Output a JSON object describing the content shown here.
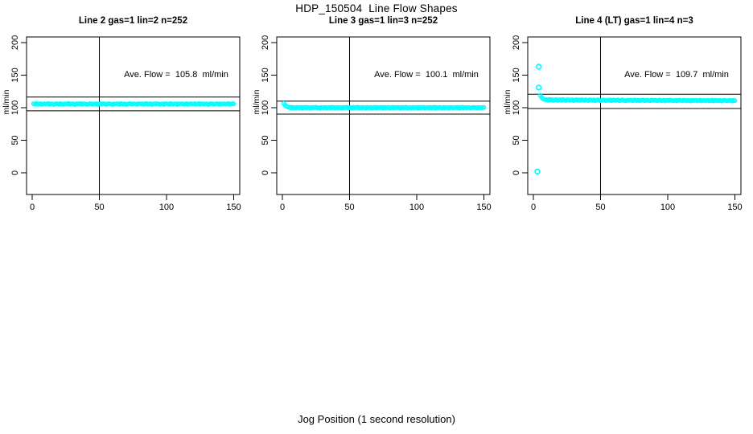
{
  "chart_data": {
    "type": "scatter",
    "title": "HDP_150504  Line Flow Shapes",
    "xlabel": "Jog Position (1 second resolution)",
    "ylabel": "ml/min",
    "xlim": [
      0,
      150
    ],
    "ylim": [
      0,
      200
    ],
    "x_ticks": [
      0,
      50,
      100,
      150
    ],
    "y_ticks": [
      0,
      50,
      100,
      150,
      200
    ],
    "vline_x": 50,
    "grid": false,
    "point_color": "#00FFFF",
    "line_color": "#000000",
    "plots": [
      {
        "title": "Line 2 gas=1 lin=2 n=252",
        "annotation": "Ave. Flow =  105.8  ml/min",
        "ave_flow": 105.8,
        "n": 252,
        "upper_line": 116.4,
        "lower_line": 95.2,
        "series": {
          "x_start": 1,
          "x_step": 1,
          "y": [
            106.1,
            105.3,
            106.5,
            105.0,
            105.8,
            106.3,
            104.9,
            105.6,
            106.2,
            105.4,
            105.9,
            106.4,
            105.1,
            105.7,
            106.0,
            104.8,
            105.5,
            106.2,
            105.8,
            105.2,
            106.3,
            105.6,
            104.9,
            106.1,
            105.4,
            105.9,
            106.5,
            105.2,
            105.7,
            106.0,
            105.3,
            104.8,
            106.2,
            105.8,
            105.5,
            106.4,
            105.0,
            105.9,
            106.1,
            105.6,
            104.9,
            105.4,
            106.3,
            105.8,
            105.1,
            106.0,
            105.5,
            106.2,
            104.8,
            105.7,
            106.4,
            105.3,
            105.9,
            106.1,
            105.0,
            105.6,
            106.3,
            105.8,
            105.2,
            104.9,
            106.0,
            105.5,
            106.2,
            105.7,
            105.1,
            106.4,
            105.8,
            105.3,
            106.1,
            104.8,
            105.6,
            105.9,
            106.3,
            105.2,
            105.7,
            106.0,
            105.4,
            104.9,
            106.2,
            105.8,
            105.5,
            106.1,
            105.0,
            105.9,
            106.4,
            105.3,
            105.6,
            106.2,
            104.8,
            105.7,
            106.0,
            105.4,
            106.3,
            105.8,
            105.1,
            105.5,
            106.1,
            104.9,
            105.9,
            106.2,
            105.6,
            105.0,
            106.4,
            105.7,
            105.3,
            106.0,
            105.8,
            104.8,
            106.2,
            105.5,
            105.9,
            106.1,
            105.2,
            105.6,
            106.3,
            104.9,
            105.7,
            106.0,
            105.4,
            105.8,
            106.2,
            105.1,
            105.5,
            106.4,
            105.0,
            105.9,
            106.1,
            105.3,
            105.7,
            106.0,
            104.8,
            105.6,
            106.3,
            105.8,
            105.2,
            105.5,
            106.1,
            105.9,
            104.9,
            106.2,
            105.4,
            105.7,
            106.0,
            105.3,
            105.8,
            106.4,
            105.1,
            105.6,
            106.2,
            105.8
          ]
        },
        "extra_points": []
      },
      {
        "title": "Line 3 gas=1 lin=3 n=252",
        "annotation": "Ave. Flow =  100.1  ml/min",
        "ave_flow": 100.1,
        "n": 252,
        "upper_line": 110.1,
        "lower_line": 90.1,
        "series": {
          "x_start": 1,
          "x_step": 1,
          "y": [
            106.5,
            104.2,
            102.4,
            101.3,
            100.4,
            99.6,
            100.8,
            99.9,
            100.3,
            99.4,
            100.6,
            100.1,
            99.7,
            100.5,
            99.2,
            100.2,
            100.7,
            99.8,
            100.4,
            100.0,
            99.5,
            100.6,
            99.9,
            100.3,
            100.8,
            99.6,
            100.1,
            99.3,
            100.5,
            100.2,
            99.8,
            100.6,
            99.4,
            100.0,
            100.4,
            99.7,
            100.8,
            100.2,
            99.5,
            100.3,
            99.9,
            100.6,
            100.1,
            99.3,
            100.5,
            99.8,
            100.2,
            100.7,
            99.6,
            100.0,
            100.4,
            99.2,
            100.6,
            99.9,
            100.3,
            100.8,
            99.5,
            100.1,
            99.7,
            100.4,
            100.0,
            99.3,
            100.6,
            100.2,
            99.8,
            100.5,
            99.4,
            100.0,
            100.7,
            99.6,
            100.3,
            99.9,
            100.1,
            100.4,
            99.2,
            100.6,
            99.8,
            100.2,
            100.5,
            99.5,
            100.0,
            100.8,
            99.7,
            100.3,
            99.9,
            100.4,
            100.1,
            99.3,
            100.6,
            99.8,
            100.2,
            100.7,
            99.5,
            100.0,
            100.3,
            99.6,
            100.5,
            99.9,
            100.1,
            100.4,
            99.2,
            100.8,
            99.7,
            100.2,
            100.6,
            99.4,
            100.0,
            100.3,
            99.8,
            100.5,
            99.6,
            100.1,
            100.7,
            99.3,
            100.2,
            99.9,
            100.4,
            100.0,
            99.5,
            100.6,
            99.8,
            100.3,
            100.1,
            99.4,
            100.5,
            100.2,
            99.7,
            100.0,
            100.4,
            99.9,
            100.6,
            99.2,
            100.3,
            100.8,
            99.6,
            100.1,
            99.8,
            100.5,
            100.2,
            99.4,
            100.0,
            100.6,
            99.9,
            100.3,
            99.5,
            100.4,
            100.1,
            99.7,
            100.2,
            100.5
          ]
        },
        "extra_points": []
      },
      {
        "title": "Line 4 (LT) gas=1 lin=4 n=3",
        "annotation": "Ave. Flow =  109.7  ml/min",
        "ave_flow": 109.7,
        "n": 3,
        "upper_line": 120.7,
        "lower_line": 98.7,
        "series": {
          "x_start": 5,
          "x_step": 1,
          "y": [
            119.0,
            116.0,
            114.0,
            112.8,
            112.2,
            112.4,
            111.5,
            112.8,
            111.9,
            112.3,
            111.2,
            112.0,
            112.5,
            111.4,
            111.9,
            112.2,
            111.3,
            112.6,
            111.8,
            111.1,
            112.1,
            112.4,
            111.6,
            111.9,
            112.3,
            111.0,
            111.8,
            112.2,
            111.5,
            112.0,
            111.3,
            112.4,
            111.7,
            111.1,
            112.1,
            111.6,
            111.0,
            112.2,
            111.8,
            111.4,
            112.0,
            110.9,
            111.7,
            112.1,
            111.5,
            110.8,
            111.3,
            112.0,
            111.6,
            110.9,
            111.8,
            111.2,
            112.0,
            110.7,
            111.5,
            111.9,
            111.1,
            111.6,
            112.0,
            110.8,
            111.3,
            111.8,
            111.5,
            110.9,
            110.6,
            111.7,
            111.2,
            111.9,
            111.4,
            110.8,
            112.0,
            111.5,
            111.0,
            111.6,
            110.5,
            111.2,
            111.7,
            111.9,
            110.8,
            111.3,
            111.6,
            111.0,
            110.6,
            111.8,
            111.4,
            111.1,
            111.6,
            110.5,
            111.3,
            111.9,
            110.8,
            111.1,
            111.7,
            110.4,
            111.2,
            111.5,
            110.9,
            111.8,
            111.3,
            110.6,
            111.0,
            111.6,
            110.4,
            111.3,
            111.7,
            111.0,
            110.5,
            111.8,
            111.2,
            110.8,
            111.4,
            111.1,
            110.3,
            111.6,
            110.9,
            111.3,
            111.5,
            110.6,
            111.0,
            111.7,
            110.4,
            111.1,
            111.4,
            110.8,
            111.2,
            111.5,
            110.5,
            110.9,
            111.8,
            110.4,
            111.2,
            111.4,
            110.7,
            111.0,
            111.3,
            110.2,
            110.9,
            111.6,
            111.1,
            110.6,
            110.8,
            111.4,
            111.2,
            110.3,
            111.5,
            110.8
          ]
        },
        "extra_points": [
          [
            3,
            2
          ],
          [
            4,
            131
          ],
          [
            4,
            163
          ]
        ]
      }
    ]
  }
}
